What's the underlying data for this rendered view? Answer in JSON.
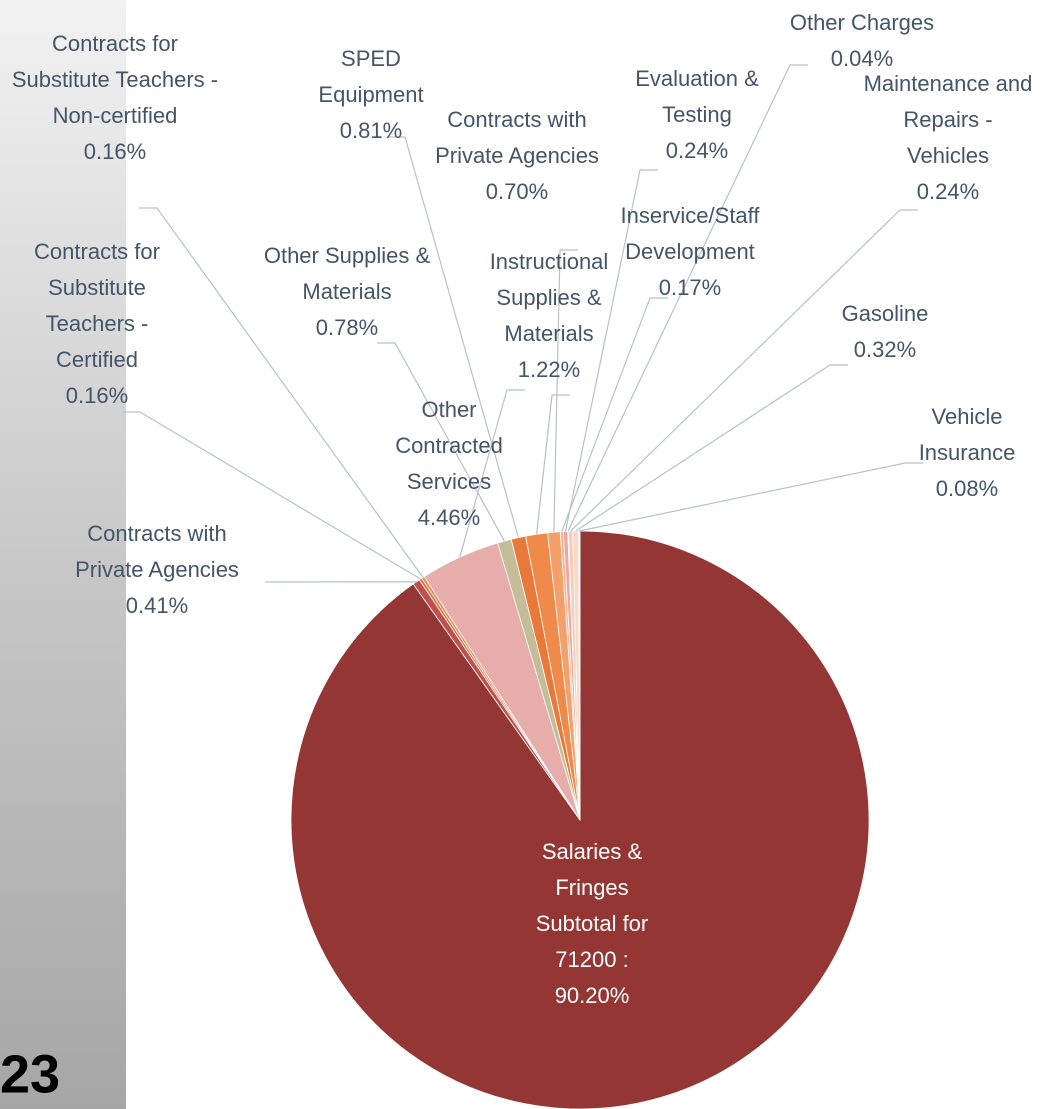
{
  "page_number": "23",
  "chart_data": {
    "type": "pie",
    "categories": [
      "Salaries & Fringes Subtotal for 71200 :",
      "Contracts with Private Agencies",
      "Contracts for Substitute Teachers - Certified",
      "Contracts for Substitute Teachers - Non-certified",
      "Other Contracted Services",
      "Other Supplies & Materials",
      "SPED Equipment",
      "Instructional Supplies & Materials",
      "Contracts with Private Agencies",
      "Inservice/Staff Development",
      "Evaluation & Testing",
      "Other Charges",
      "Maintenance and Repairs - Vehicles",
      "Gasoline",
      "Vehicle Insurance"
    ],
    "values": [
      90.2,
      0.41,
      0.16,
      0.16,
      4.46,
      0.78,
      0.81,
      1.22,
      0.7,
      0.17,
      0.24,
      0.04,
      0.24,
      0.32,
      0.08
    ],
    "value_labels": [
      "90.20%",
      "0.41%",
      "0.16%",
      "0.16%",
      "4.46%",
      "0.78%",
      "0.81%",
      "1.22%",
      "0.70%",
      "0.17%",
      "0.24%",
      "0.04%",
      "0.24%",
      "0.32%",
      "0.08%"
    ],
    "colors": [
      "#943634",
      "#c0504d",
      "#d9743a",
      "#e08a5c",
      "#e6adab",
      "#c4bd97",
      "#e8793a",
      "#f08a4b",
      "#f4a06a",
      "#f7b58c",
      "#f2a4a0",
      "#f5c0a8",
      "#f8cbb4",
      "#fad7c6",
      "#fce4d8"
    ]
  }
}
